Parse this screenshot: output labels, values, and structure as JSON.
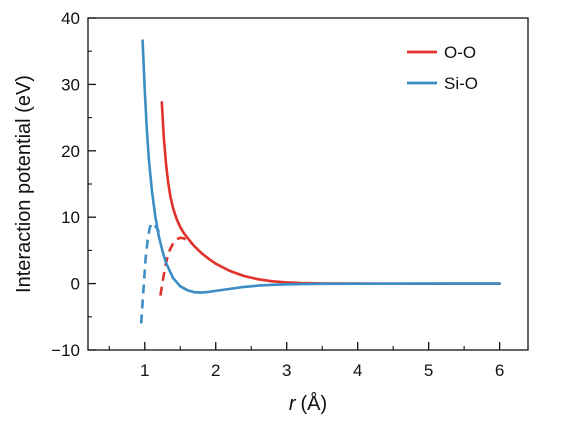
{
  "chart_data": {
    "type": "line",
    "title": "",
    "xlabel_symbol": "r",
    "xlabel_unit": "(Å)",
    "ylabel": "Interaction potential (eV)",
    "xlim": [
      0.2,
      6.4
    ],
    "ylim": [
      -10,
      40
    ],
    "xticks": [
      1,
      2,
      3,
      4,
      5,
      6
    ],
    "yticks": [
      -10,
      0,
      10,
      20,
      30,
      40
    ],
    "x_minor_ticks": [
      0.5,
      1.5,
      2.5,
      3.5,
      4.5,
      5.5
    ],
    "y_minor_ticks": [
      -5,
      5,
      15,
      25,
      35
    ],
    "legend_position": "top-right",
    "grid": false,
    "series": [
      {
        "name": "O-O",
        "color": "#e1312b",
        "solid": {
          "x": [
            1.24,
            1.27,
            1.3,
            1.33,
            1.36,
            1.4,
            1.45,
            1.5,
            1.55,
            1.6,
            1.7,
            1.8,
            1.9,
            2.0,
            2.2,
            2.4,
            2.6,
            2.8,
            3.0,
            3.2,
            3.5,
            4.0,
            4.5,
            5.0,
            5.5,
            6.0
          ],
          "y": [
            27.3,
            21.8,
            17.9,
            15.2,
            13.2,
            11.3,
            9.7,
            8.5,
            7.6,
            6.9,
            5.6,
            4.6,
            3.75,
            3.0,
            1.9,
            1.15,
            0.65,
            0.35,
            0.18,
            0.09,
            0.03,
            0.0,
            -0.01,
            -0.01,
            0.0,
            0.0
          ]
        },
        "dashed": {
          "x": [
            1.22,
            1.25,
            1.28,
            1.31,
            1.35,
            1.4,
            1.45,
            1.5,
            1.55,
            1.6,
            1.65
          ],
          "y": [
            -1.8,
            0.2,
            2.0,
            3.6,
            5.0,
            6.1,
            6.7,
            6.9,
            6.8,
            6.5,
            6.1
          ]
        }
      },
      {
        "name": "Si-O",
        "color": "#3b8dc4",
        "solid": {
          "x": [
            0.97,
            1.0,
            1.03,
            1.06,
            1.1,
            1.15,
            1.2,
            1.25,
            1.3,
            1.4,
            1.5,
            1.6,
            1.7,
            1.8,
            1.9,
            2.0,
            2.2,
            2.4,
            2.6,
            2.8,
            3.0,
            3.5,
            4.0,
            5.0,
            6.0
          ],
          "y": [
            36.6,
            29.0,
            23.0,
            18.5,
            14.0,
            10.0,
            7.0,
            4.9,
            3.1,
            0.8,
            -0.4,
            -1.0,
            -1.3,
            -1.35,
            -1.25,
            -1.1,
            -0.8,
            -0.5,
            -0.3,
            -0.18,
            -0.1,
            -0.03,
            -0.01,
            0.0,
            0.0
          ]
        },
        "dashed": {
          "x": [
            0.95,
            0.97,
            0.99,
            1.01,
            1.04,
            1.07,
            1.1,
            1.13,
            1.16,
            1.2
          ],
          "y": [
            -6.0,
            -2.8,
            0.5,
            3.6,
            6.5,
            8.4,
            9.1,
            8.9,
            8.5,
            7.8
          ]
        }
      }
    ]
  }
}
